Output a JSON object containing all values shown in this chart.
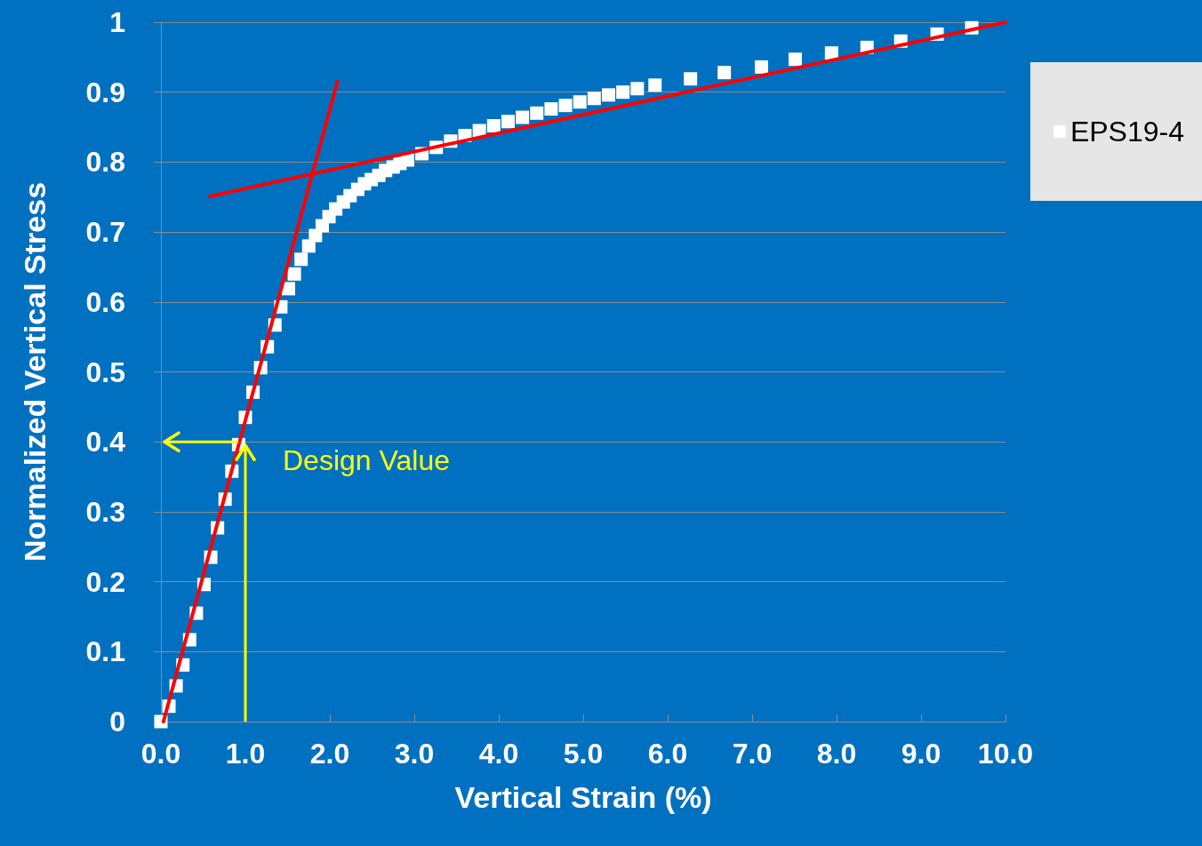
{
  "chart_data": {
    "type": "scatter",
    "xlabel": "Vertical Strain (%)",
    "ylabel": "Normalized Vertical Stress",
    "xlim": [
      0,
      10
    ],
    "ylim": [
      0,
      1
    ],
    "xticks": [
      {
        "value": 0,
        "label": "0.0"
      },
      {
        "value": 1,
        "label": "1.0"
      },
      {
        "value": 2,
        "label": "2.0"
      },
      {
        "value": 3,
        "label": "3.0"
      },
      {
        "value": 4,
        "label": "4.0"
      },
      {
        "value": 5,
        "label": "5.0"
      },
      {
        "value": 6,
        "label": "6.0"
      },
      {
        "value": 7,
        "label": "7.0"
      },
      {
        "value": 8,
        "label": "8.0"
      },
      {
        "value": 9,
        "label": "9.0"
      },
      {
        "value": 10,
        "label": "10.0"
      }
    ],
    "yticks": [
      0,
      0.1,
      0.2,
      0.3,
      0.4,
      0.5,
      0.6,
      0.7,
      0.8,
      0.9,
      1
    ],
    "grid": "y",
    "legend": "right",
    "marker": "square",
    "annotations": [
      {
        "text": "Design Value",
        "x": 1,
        "y": 0.4
      }
    ],
    "series": [
      {
        "name": "EPS19-4",
        "color": "#ffffff",
        "x": [
          0,
          0.095,
          0.18,
          0.26,
          0.34,
          0.42,
          0.51,
          0.59,
          0.67,
          0.76,
          0.84,
          0.92,
          1.0,
          1.09,
          1.18,
          1.26,
          1.35,
          1.42,
          1.51,
          1.58,
          1.66,
          1.75,
          1.83,
          1.91,
          1.99,
          2.07,
          2.16,
          2.24,
          2.33,
          2.41,
          2.49,
          2.58,
          2.66,
          2.75,
          2.83,
          2.92,
          3.09,
          3.26,
          3.43,
          3.6,
          3.77,
          3.94,
          4.11,
          4.28,
          4.45,
          4.62,
          4.79,
          4.96,
          5.13,
          5.3,
          5.47,
          5.64,
          5.85,
          6.27,
          6.67,
          7.11,
          7.51,
          7.94,
          8.36,
          8.76,
          9.19,
          9.6
        ],
        "values": [
          0,
          0.022,
          0.051,
          0.081,
          0.117,
          0.155,
          0.196,
          0.235,
          0.277,
          0.318,
          0.358,
          0.396,
          0.435,
          0.471,
          0.506,
          0.536,
          0.567,
          0.593,
          0.619,
          0.64,
          0.661,
          0.68,
          0.695,
          0.709,
          0.722,
          0.733,
          0.743,
          0.752,
          0.761,
          0.769,
          0.775,
          0.781,
          0.788,
          0.793,
          0.798,
          0.803,
          0.812,
          0.821,
          0.83,
          0.838,
          0.845,
          0.852,
          0.858,
          0.864,
          0.87,
          0.876,
          0.881,
          0.886,
          0.891,
          0.896,
          0.9,
          0.905,
          0.91,
          0.919,
          0.928,
          0.936,
          0.947,
          0.956,
          0.964,
          0.973,
          0.983,
          0.992
        ]
      },
      {
        "type": "line",
        "color": "#ff0000",
        "marker": "none",
        "x": [
          0.03,
          2.09
        ],
        "values": [
          0,
          0.915
        ]
      },
      {
        "type": "line",
        "color": "#ff0000",
        "marker": "none",
        "x": [
          0.58,
          10
        ],
        "values": [
          0.751,
          1
        ]
      }
    ]
  }
}
